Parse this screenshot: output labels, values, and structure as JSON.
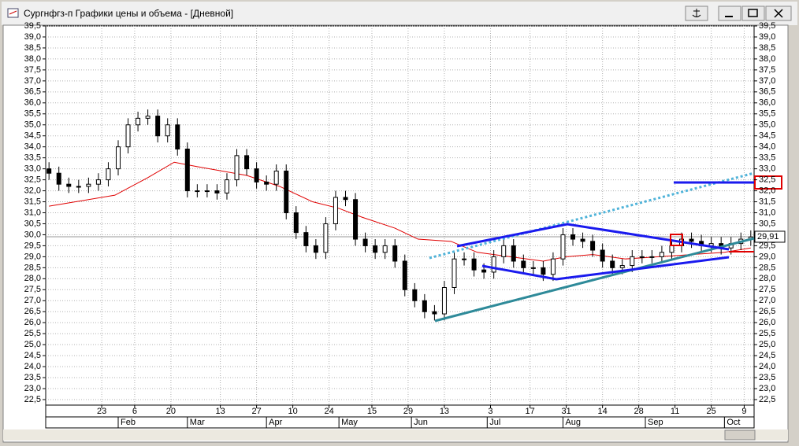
{
  "window": {
    "title": "Сургнфгз-п Графики цены и объема - [Дневной]"
  },
  "chart_data": {
    "type": "candlestick",
    "x": [
      0,
      3,
      6,
      9,
      12,
      15,
      18,
      21,
      24,
      27,
      30,
      33,
      36,
      39,
      42,
      45,
      48,
      51,
      54,
      57,
      60,
      63,
      66,
      69,
      72,
      75,
      78,
      81,
      84,
      87,
      90,
      93,
      96,
      99,
      102,
      105,
      108,
      111,
      114,
      117,
      120,
      123,
      126,
      129,
      132,
      135,
      138,
      141,
      144,
      147,
      150,
      153,
      156,
      159,
      162,
      165,
      168,
      171,
      174,
      177,
      180,
      183,
      186,
      189,
      192,
      195,
      198,
      201,
      204,
      207,
      210,
      213
    ],
    "open": [
      33,
      32.8,
      32.3,
      32.2,
      32.2,
      32.3,
      32.5,
      33,
      34,
      35,
      35.3,
      35.4,
      34.5,
      35,
      33.9,
      32,
      32,
      32,
      31.9,
      32.5,
      33.6,
      33,
      32.4,
      32.3,
      32.9,
      31,
      30.1,
      29.5,
      29.2,
      30.5,
      31.7,
      31.6,
      29.8,
      29.5,
      29.2,
      29.5,
      28.8,
      27.5,
      27,
      26.5,
      26.4,
      27.6,
      28.9,
      28.9,
      28.4,
      28.3,
      29,
      29.5,
      28.8,
      28.5,
      28.5,
      28.2,
      28.9,
      30,
      29.8,
      29.7,
      29.3,
      28.8,
      28.5,
      28.6,
      29,
      29,
      29,
      29.2,
      29.5,
      29.8,
      29.7,
      29.5,
      29.6,
      29.4,
      29.6,
      29.8
    ],
    "high": [
      33.3,
      33.1,
      32.6,
      32.5,
      32.6,
      32.8,
      33.3,
      34.3,
      35.3,
      35.6,
      35.7,
      35.7,
      35.3,
      35.3,
      34.2,
      32.3,
      32.3,
      32.3,
      32.8,
      33.9,
      33.9,
      33.3,
      32.7,
      33.2,
      33.2,
      31.3,
      30.4,
      29.8,
      30.8,
      32,
      32,
      31.9,
      30.1,
      29.8,
      29.8,
      29.8,
      29.1,
      27.8,
      27.3,
      26.8,
      27.9,
      29.2,
      29.2,
      29.2,
      28.7,
      29.3,
      29.8,
      29.8,
      29.1,
      28.8,
      28.8,
      29.2,
      30.3,
      30.3,
      30.1,
      30,
      29.6,
      29.1,
      28.9,
      29.3,
      29.3,
      29.3,
      29.5,
      29.8,
      30.1,
      30.1,
      30,
      29.9,
      29.9,
      29.9,
      30.1,
      30.2
    ],
    "low": [
      32.5,
      32,
      31.9,
      31.9,
      31.9,
      32,
      32.2,
      32.7,
      33.7,
      34.7,
      35,
      34.2,
      34.2,
      33.6,
      31.7,
      31.7,
      31.7,
      31.6,
      31.6,
      32.2,
      32.7,
      32.1,
      32,
      32,
      30.7,
      29.8,
      29.2,
      28.9,
      28.9,
      30.2,
      31.3,
      29.5,
      29.2,
      28.9,
      28.9,
      28.5,
      27.2,
      26.7,
      26.2,
      26.1,
      26.1,
      27.3,
      28.6,
      28.1,
      28,
      28,
      28.7,
      28.5,
      28.2,
      28.2,
      27.9,
      27.9,
      28.6,
      29.5,
      29.4,
      29,
      28.5,
      28.2,
      28.2,
      28.3,
      28.7,
      28.7,
      28.7,
      28.9,
      29.2,
      29.4,
      29.2,
      29.2,
      29.1,
      29.1,
      29.3,
      29.5
    ],
    "close": [
      32.8,
      32.3,
      32.2,
      32.2,
      32.3,
      32.5,
      33,
      34,
      35,
      35.3,
      35.4,
      34.5,
      35,
      33.9,
      32,
      32,
      32,
      31.9,
      32.5,
      33.6,
      33,
      32.4,
      32.3,
      32.9,
      31,
      30.1,
      29.5,
      29.2,
      30.5,
      31.7,
      31.6,
      29.8,
      29.5,
      29.2,
      29.5,
      28.8,
      27.5,
      27,
      26.5,
      26.4,
      27.6,
      28.9,
      28.9,
      28.4,
      28.3,
      29,
      29.5,
      28.8,
      28.5,
      28.5,
      28.2,
      28.9,
      30,
      29.8,
      29.7,
      29.3,
      28.8,
      28.5,
      28.6,
      29,
      29,
      29,
      29.2,
      29.5,
      29.8,
      29.7,
      29.5,
      29.6,
      29.4,
      29.6,
      29.8,
      29.9
    ],
    "up_color": "#ffffff",
    "down_color": "#000000",
    "moving_average": {
      "color": "#e00000",
      "x": [
        0,
        20,
        30,
        38,
        45,
        60,
        70,
        80,
        88,
        95,
        105,
        112,
        122,
        130,
        140,
        150,
        157,
        165,
        175,
        185,
        195,
        205,
        213
      ],
      "values": [
        31.3,
        31.8,
        32.6,
        33.3,
        33.1,
        32.7,
        32.2,
        31.5,
        31.2,
        30.8,
        30.3,
        29.8,
        29.7,
        29.2,
        29.0,
        28.8,
        29.0,
        29.1,
        28.9,
        29.0,
        29.1,
        29.2,
        29.4
      ]
    },
    "last_price": {
      "value": 29.91,
      "label": "29,91"
    },
    "xlim": [
      -1,
      214
    ],
    "ylim": [
      22.25,
      39.5
    ],
    "grid": true,
    "yticks": [
      {
        "value": 39.5,
        "label": "39,5"
      },
      {
        "value": 39,
        "label": "39,0"
      },
      {
        "value": 38.5,
        "label": "38,5"
      },
      {
        "value": 38,
        "label": "38,0"
      },
      {
        "value": 37.5,
        "label": "37,5"
      },
      {
        "value": 37,
        "label": "37,0"
      },
      {
        "value": 36.5,
        "label": "36,5"
      },
      {
        "value": 36,
        "label": "36,0"
      },
      {
        "value": 35.5,
        "label": "35,5"
      },
      {
        "value": 35,
        "label": "35,0"
      },
      {
        "value": 34.5,
        "label": "34,5"
      },
      {
        "value": 34,
        "label": "34,0"
      },
      {
        "value": 33.5,
        "label": "33,5"
      },
      {
        "value": 33,
        "label": "33,0"
      },
      {
        "value": 32.5,
        "label": "32,5"
      },
      {
        "value": 32,
        "label": "32,0"
      },
      {
        "value": 31.5,
        "label": "31,5"
      },
      {
        "value": 31,
        "label": "31,0"
      },
      {
        "value": 30.5,
        "label": "30,5"
      },
      {
        "value": 30,
        "label": "30,0"
      },
      {
        "value": 29.5,
        "label": "29,5"
      },
      {
        "value": 29,
        "label": "29,0"
      },
      {
        "value": 28.5,
        "label": "28,5"
      },
      {
        "value": 28,
        "label": "28,0"
      },
      {
        "value": 27.5,
        "label": "27,5"
      },
      {
        "value": 27,
        "label": "27,0"
      },
      {
        "value": 26.5,
        "label": "26,5"
      },
      {
        "value": 26,
        "label": "26,0"
      },
      {
        "value": 25.5,
        "label": "25,5"
      },
      {
        "value": 25,
        "label": "25,0"
      },
      {
        "value": 24.5,
        "label": "24,5"
      },
      {
        "value": 24,
        "label": "24,0"
      },
      {
        "value": 23.5,
        "label": "23,5"
      },
      {
        "value": 23,
        "label": "23,0"
      },
      {
        "value": 22.5,
        "label": "22,5"
      }
    ],
    "xticks": [
      {
        "value": 16,
        "label": "23"
      },
      {
        "value": 26,
        "label": "6"
      },
      {
        "value": 37,
        "label": "20"
      },
      {
        "value": 52,
        "label": "13"
      },
      {
        "value": 63,
        "label": "27"
      },
      {
        "value": 74,
        "label": "10"
      },
      {
        "value": 85,
        "label": "24"
      },
      {
        "value": 98,
        "label": "15"
      },
      {
        "value": 109,
        "label": "29"
      },
      {
        "value": 120,
        "label": "13"
      },
      {
        "value": 134,
        "label": "3"
      },
      {
        "value": 146,
        "label": "17"
      },
      {
        "value": 157,
        "label": "31"
      },
      {
        "value": 168,
        "label": "14"
      },
      {
        "value": 179,
        "label": "28"
      },
      {
        "value": 190,
        "label": "11"
      },
      {
        "value": 201,
        "label": "25"
      },
      {
        "value": 211,
        "label": "9"
      }
    ],
    "month_ticks": [
      {
        "value": 21,
        "label": "Feb"
      },
      {
        "value": 42,
        "label": "Mar"
      },
      {
        "value": 66,
        "label": "Apr"
      },
      {
        "value": 88,
        "label": "May"
      },
      {
        "value": 110,
        "label": "Jun"
      },
      {
        "value": 133,
        "label": "Jul"
      },
      {
        "value": 156,
        "label": "Aug"
      },
      {
        "value": 181,
        "label": "Sep"
      },
      {
        "value": 205,
        "label": "Oct"
      }
    ]
  }
}
